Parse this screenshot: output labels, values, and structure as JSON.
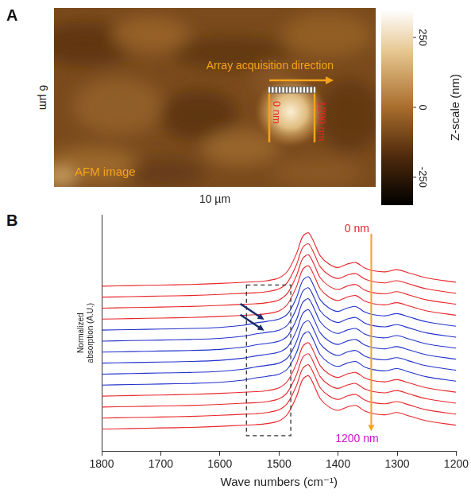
{
  "panel_a": {
    "label": "A",
    "type": "image",
    "image_label": "AFM image",
    "annotation": "Array acquisition direction",
    "scan_start": "0 nm",
    "scan_end": "1200 nm",
    "x_label": "10 µm",
    "y_label": "6 µm",
    "colorbar": {
      "title": "Z-scale (nm)",
      "lim": [
        -350,
        350
      ],
      "ticks": [
        -250,
        0,
        250
      ]
    }
  },
  "chart_data": {
    "label": "B",
    "type": "line",
    "x": [
      1800,
      1750,
      1700,
      1650,
      1600,
      1560,
      1540,
      1520,
      1500,
      1485,
      1470,
      1460,
      1450,
      1440,
      1430,
      1415,
      1400,
      1385,
      1370,
      1355,
      1340,
      1320,
      1300,
      1280,
      1250,
      1200
    ],
    "xlim": [
      1800,
      1200
    ],
    "xticks": [
      1800,
      1700,
      1600,
      1500,
      1400,
      1300,
      1200
    ],
    "ylim": [
      -0.4,
      3.9
    ],
    "x_label": "Wave numbers (cm⁻¹)",
    "y_label": [
      "Normalized",
      "absorption (A.U.)"
    ],
    "tick_labels": "x",
    "grid": false,
    "annotations": {
      "start": "0 nm",
      "end": "1200 nm"
    },
    "highlight": {
      "x": [
        1555,
        1480
      ],
      "y": [
        -0.12,
        2.62
      ]
    },
    "arrows": [
      {
        "x": 1525,
        "y": 1.99
      },
      {
        "x": 1525,
        "y": 1.79
      }
    ],
    "series": [
      {
        "color": "#e8262a",
        "values": [
          2.6,
          2.61,
          2.62,
          2.63,
          2.65,
          2.67,
          2.68,
          2.7,
          2.75,
          2.88,
          3.2,
          3.5,
          3.57,
          3.38,
          3.15,
          3.0,
          2.94,
          3.0,
          3.03,
          2.93,
          2.88,
          2.86,
          2.9,
          2.84,
          2.75,
          2.67
        ]
      },
      {
        "color": "#e8262a",
        "values": [
          2.4,
          2.41,
          2.42,
          2.43,
          2.45,
          2.47,
          2.48,
          2.5,
          2.55,
          2.68,
          3.0,
          3.3,
          3.37,
          3.18,
          2.95,
          2.8,
          2.74,
          2.8,
          2.83,
          2.73,
          2.68,
          2.66,
          2.7,
          2.64,
          2.55,
          2.47
        ]
      },
      {
        "color": "#e8262a",
        "values": [
          2.2,
          2.21,
          2.22,
          2.23,
          2.25,
          2.27,
          2.28,
          2.3,
          2.35,
          2.48,
          2.8,
          3.1,
          3.17,
          2.98,
          2.75,
          2.6,
          2.54,
          2.6,
          2.63,
          2.53,
          2.48,
          2.46,
          2.5,
          2.44,
          2.35,
          2.27
        ]
      },
      {
        "color": "#e8262a",
        "values": [
          2.0,
          2.01,
          2.02,
          2.03,
          2.05,
          2.07,
          2.08,
          2.1,
          2.15,
          2.28,
          2.6,
          2.9,
          2.97,
          2.78,
          2.55,
          2.4,
          2.34,
          2.4,
          2.43,
          2.33,
          2.28,
          2.26,
          2.3,
          2.24,
          2.15,
          2.07
        ]
      },
      {
        "color": "#2233cc",
        "values": [
          1.8,
          1.81,
          1.82,
          1.83,
          1.85,
          1.89,
          1.93,
          1.96,
          2.0,
          2.1,
          2.4,
          2.7,
          2.77,
          2.58,
          2.35,
          2.2,
          2.14,
          2.2,
          2.23,
          2.13,
          2.08,
          2.06,
          2.1,
          2.04,
          1.95,
          1.87
        ]
      },
      {
        "color": "#2233cc",
        "values": [
          1.6,
          1.61,
          1.62,
          1.63,
          1.65,
          1.69,
          1.73,
          1.76,
          1.8,
          1.9,
          2.2,
          2.5,
          2.57,
          2.38,
          2.15,
          2.0,
          1.94,
          2.0,
          2.03,
          1.93,
          1.88,
          1.86,
          1.9,
          1.84,
          1.75,
          1.67
        ]
      },
      {
        "color": "#2233cc",
        "values": [
          1.4,
          1.41,
          1.42,
          1.43,
          1.45,
          1.49,
          1.53,
          1.56,
          1.6,
          1.7,
          2.0,
          2.3,
          2.37,
          2.18,
          1.95,
          1.8,
          1.74,
          1.8,
          1.83,
          1.73,
          1.68,
          1.66,
          1.7,
          1.64,
          1.55,
          1.47
        ]
      },
      {
        "color": "#2233cc",
        "values": [
          1.2,
          1.21,
          1.22,
          1.23,
          1.25,
          1.29,
          1.33,
          1.36,
          1.4,
          1.5,
          1.8,
          2.1,
          2.17,
          1.98,
          1.75,
          1.6,
          1.54,
          1.6,
          1.63,
          1.53,
          1.48,
          1.46,
          1.5,
          1.44,
          1.35,
          1.27
        ]
      },
      {
        "color": "#2233cc",
        "values": [
          1.0,
          1.01,
          1.02,
          1.03,
          1.05,
          1.09,
          1.13,
          1.16,
          1.2,
          1.3,
          1.6,
          1.9,
          1.97,
          1.78,
          1.55,
          1.4,
          1.34,
          1.4,
          1.43,
          1.33,
          1.28,
          1.26,
          1.3,
          1.24,
          1.15,
          1.07
        ]
      },
      {
        "color": "#2233cc",
        "values": [
          0.8,
          0.81,
          0.82,
          0.83,
          0.85,
          0.89,
          0.93,
          0.96,
          1.0,
          1.1,
          1.4,
          1.7,
          1.77,
          1.58,
          1.35,
          1.2,
          1.14,
          1.2,
          1.23,
          1.13,
          1.08,
          1.06,
          1.1,
          1.04,
          0.95,
          0.87
        ]
      },
      {
        "color": "#e8262a",
        "values": [
          0.6,
          0.61,
          0.62,
          0.63,
          0.65,
          0.67,
          0.68,
          0.7,
          0.75,
          0.88,
          1.2,
          1.5,
          1.57,
          1.38,
          1.15,
          1.0,
          0.94,
          1.0,
          1.03,
          0.93,
          0.88,
          0.86,
          0.9,
          0.84,
          0.75,
          0.67
        ]
      },
      {
        "color": "#e8262a",
        "values": [
          0.4,
          0.41,
          0.42,
          0.43,
          0.45,
          0.47,
          0.48,
          0.5,
          0.55,
          0.68,
          1.0,
          1.3,
          1.37,
          1.18,
          0.95,
          0.8,
          0.74,
          0.8,
          0.83,
          0.73,
          0.68,
          0.66,
          0.7,
          0.64,
          0.55,
          0.47
        ]
      },
      {
        "color": "#e8262a",
        "values": [
          0.2,
          0.21,
          0.22,
          0.23,
          0.25,
          0.27,
          0.28,
          0.3,
          0.35,
          0.48,
          0.8,
          1.1,
          1.17,
          0.98,
          0.75,
          0.6,
          0.54,
          0.6,
          0.63,
          0.53,
          0.48,
          0.46,
          0.5,
          0.44,
          0.35,
          0.27
        ]
      },
      {
        "color": "#e8262a",
        "values": [
          0,
          0.01,
          0.02,
          0.03,
          0.05,
          0.07,
          0.08,
          0.1,
          0.15,
          0.28,
          0.6,
          0.9,
          0.97,
          0.78,
          0.55,
          0.4,
          0.34,
          0.4,
          0.43,
          0.33,
          0.28,
          0.26,
          0.3,
          0.24,
          0.15,
          0.07
        ]
      }
    ]
  }
}
